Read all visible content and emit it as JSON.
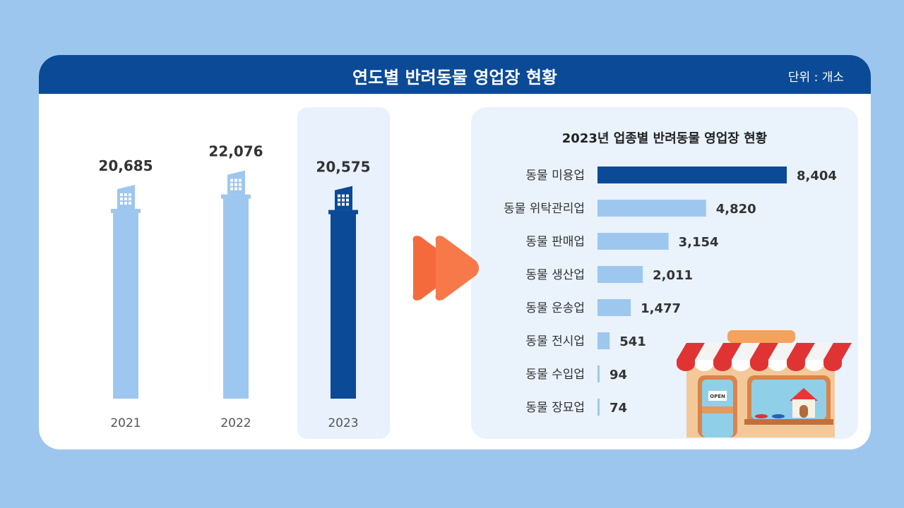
{
  "header": {
    "title": "연도별 반려동물 영업장 현황",
    "unit": "단위 : 개소"
  },
  "colors": {
    "background": "#9dc6ee",
    "header": "#0b4a96",
    "bar_light": "#9ec7ef",
    "bar_dark": "#0b4a96",
    "panel": "#eaf2fc",
    "arrow": "#f46a3c"
  },
  "chart_data": [
    {
      "type": "bar",
      "title": "연도별 반려동물 영업장 현황",
      "categories": [
        "2021",
        "2022",
        "2023"
      ],
      "values": [
        20685,
        22076,
        20575
      ],
      "value_labels": [
        "20,685",
        "22,076",
        "20,575"
      ],
      "highlight": "2023",
      "orientation": "vertical",
      "ylim": [
        0,
        22076
      ],
      "grid": false
    },
    {
      "type": "bar",
      "title": "2023년 업종별 반려동물 영업장 현황",
      "orientation": "horizontal",
      "categories": [
        "동물 미용업",
        "동물 위탁관리업",
        "동물 판매업",
        "동물 생산업",
        "동물 운송업",
        "동물 전시업",
        "동물 수입업",
        "동물 장묘업"
      ],
      "values": [
        8404,
        4820,
        3154,
        2011,
        1477,
        541,
        94,
        74
      ],
      "value_labels": [
        "8,404",
        "4,820",
        "3,154",
        "2,011",
        "1,477",
        "541",
        "94",
        "74"
      ],
      "highlight": "동물 미용업",
      "xlim": [
        0,
        8404
      ],
      "grid": false
    }
  ],
  "illustration": {
    "icon": "pet-shop-storefront",
    "sign": "OPEN"
  },
  "arrow_icon": "fast-forward-icon"
}
